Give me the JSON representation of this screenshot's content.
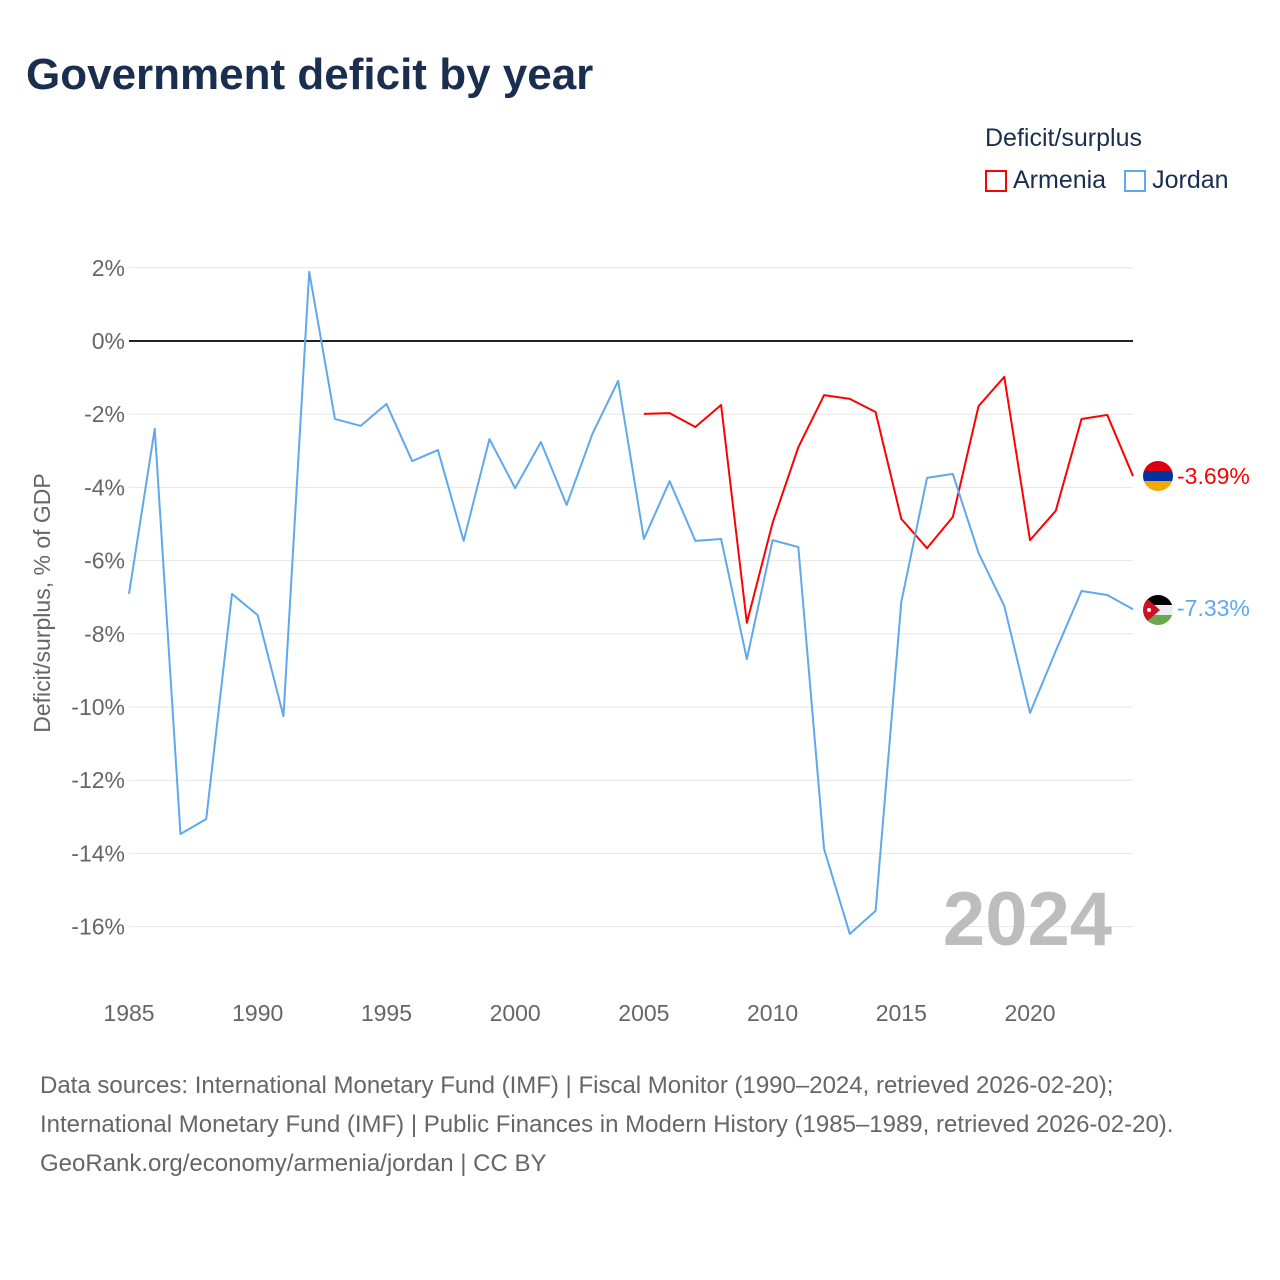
{
  "title": "Government deficit by year",
  "legend": {
    "title": "Deficit/surplus"
  },
  "footer": {
    "sources": "Data sources: International Monetary Fund (IMF) | Fiscal Monitor (1990–2024, retrieved 2026-02-20); International Monetary Fund (IMF) | Public Finances in Modern History (1985–1989, retrieved 2026-02-20).",
    "credit": "GeoRank.org/economy/armenia/jordan | CC BY"
  },
  "chart_data": {
    "type": "line",
    "title": "Government deficit by year",
    "xlabel": "",
    "ylabel": "Deficit/surplus, % of GDP",
    "xlim": [
      1985,
      2024
    ],
    "ylim": [
      -16,
      2
    ],
    "yticks": [
      2,
      0,
      -2,
      -4,
      -6,
      -8,
      -10,
      -12,
      -14,
      -16
    ],
    "ytick_labels": [
      "2%",
      "0%",
      "-2%",
      "-4%",
      "-6%",
      "-8%",
      "-10%",
      "-12%",
      "-14%",
      "-16%"
    ],
    "xticks": [
      1985,
      1990,
      1995,
      2000,
      2005,
      2010,
      2015,
      2020
    ],
    "xtick_labels": [
      "1985",
      "1990",
      "1995",
      "2000",
      "2005",
      "2010",
      "2015",
      "2020"
    ],
    "grid": true,
    "legend_position": "top-right",
    "year_watermark": "2024",
    "series": [
      {
        "name": "Armenia",
        "color": "#ff0000",
        "end_label": "-3.69%",
        "x": [
          2005,
          2006,
          2007,
          2008,
          2009,
          2010,
          2011,
          2012,
          2013,
          2014,
          2015,
          2016,
          2017,
          2018,
          2019,
          2020,
          2021,
          2022,
          2023,
          2024
        ],
        "values": [
          -1.99,
          -1.97,
          -2.35,
          -1.75,
          -7.7,
          -4.97,
          -2.9,
          -1.48,
          -1.58,
          -1.94,
          -4.86,
          -5.66,
          -4.81,
          -1.78,
          -0.98,
          -5.44,
          -4.64,
          -2.13,
          -2.02,
          -3.69
        ]
      },
      {
        "name": "Jordan",
        "color": "#5fa8ee",
        "end_label": "-7.33%",
        "x": [
          1985,
          1986,
          1987,
          1988,
          1989,
          1990,
          1991,
          1992,
          1993,
          1994,
          1995,
          1996,
          1997,
          1998,
          1999,
          2000,
          2001,
          2002,
          2003,
          2004,
          2005,
          2006,
          2007,
          2008,
          2009,
          2010,
          2011,
          2012,
          2013,
          2014,
          2015,
          2016,
          2017,
          2018,
          2019,
          2020,
          2021,
          2022,
          2023,
          2024
        ],
        "values": [
          -6.91,
          -2.4,
          -13.47,
          -13.06,
          -6.91,
          -7.49,
          -10.25,
          1.89,
          -2.13,
          -2.32,
          -1.72,
          -3.28,
          -2.98,
          -5.46,
          -2.68,
          -4.02,
          -2.76,
          -4.48,
          -2.54,
          -1.09,
          -5.41,
          -3.83,
          -5.46,
          -5.41,
          -8.69,
          -5.44,
          -5.63,
          -13.88,
          -16.2,
          -15.57,
          -7.13,
          -3.74,
          -3.63,
          -5.79,
          -7.24,
          -10.16,
          -8.47,
          -6.83,
          -6.94,
          -7.33
        ]
      }
    ]
  }
}
